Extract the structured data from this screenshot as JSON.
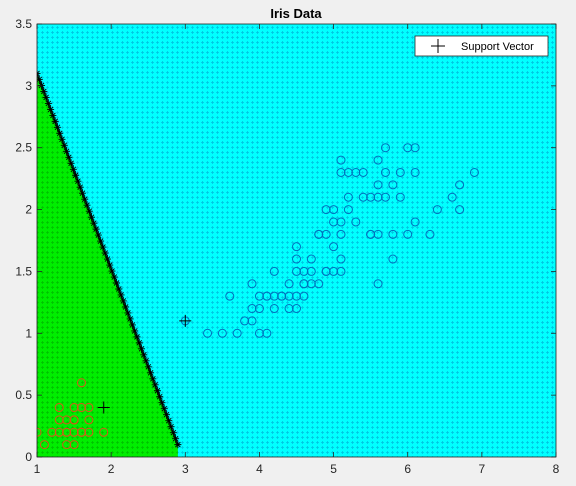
{
  "chart_data": {
    "type": "scatter",
    "title": "Iris Data",
    "xlabel": "",
    "ylabel": "",
    "xlim": [
      1,
      8
    ],
    "ylim": [
      0,
      3.5
    ],
    "xticks": [
      1,
      2,
      3,
      4,
      5,
      6,
      7,
      8
    ],
    "yticks": [
      0,
      0.5,
      1,
      1.5,
      2,
      2.5,
      3,
      3.5
    ],
    "grid": false,
    "legend": {
      "placement": "top-right",
      "entries": [
        "Support Vector"
      ]
    },
    "decision_regions": {
      "colors": {
        "class_a": "#00ee00",
        "class_b": "#00ffff"
      },
      "boundary": [
        [
          1.0,
          3.1
        ],
        [
          2.9,
          0.1
        ]
      ],
      "boundary_color": "#000000"
    },
    "series": [
      {
        "marker": "circle",
        "color": "#d9541a",
        "points": [
          [
            1.4,
            0.2
          ],
          [
            1.3,
            0.2
          ],
          [
            1.5,
            0.2
          ],
          [
            1.4,
            0.2
          ],
          [
            1.7,
            0.4
          ],
          [
            1.4,
            0.3
          ],
          [
            1.5,
            0.1
          ],
          [
            1.5,
            0.4
          ],
          [
            1.6,
            0.2
          ],
          [
            1.1,
            0.1
          ],
          [
            1.2,
            0.2
          ],
          [
            1.3,
            0.4
          ],
          [
            1.7,
            0.3
          ],
          [
            1.5,
            0.3
          ],
          [
            1.7,
            0.2
          ],
          [
            1.0,
            0.2
          ],
          [
            1.9,
            0.2
          ],
          [
            1.6,
            0.4
          ],
          [
            1.6,
            0.6
          ],
          [
            1.3,
            0.3
          ],
          [
            1.6,
            0.2
          ],
          [
            1.4,
            0.1
          ],
          [
            1.5,
            0.3
          ]
        ]
      },
      {
        "marker": "circle",
        "color": "#0072bd",
        "points": [
          [
            4.7,
            1.4
          ],
          [
            4.5,
            1.5
          ],
          [
            4.9,
            1.5
          ],
          [
            4.0,
            1.3
          ],
          [
            4.6,
            1.5
          ],
          [
            4.5,
            1.3
          ],
          [
            4.7,
            1.6
          ],
          [
            3.3,
            1.0
          ],
          [
            4.6,
            1.3
          ],
          [
            3.9,
            1.4
          ],
          [
            3.5,
            1.0
          ],
          [
            4.2,
            1.5
          ],
          [
            4.0,
            1.0
          ],
          [
            3.6,
            1.3
          ],
          [
            4.4,
            1.4
          ],
          [
            4.1,
            1.0
          ],
          [
            3.9,
            1.1
          ],
          [
            4.8,
            1.8
          ],
          [
            4.3,
            1.3
          ],
          [
            4.8,
            1.4
          ],
          [
            5.0,
            1.7
          ],
          [
            3.8,
            1.1
          ],
          [
            3.7,
            1.0
          ],
          [
            5.1,
            1.6
          ],
          [
            4.5,
            1.6
          ],
          [
            4.7,
            1.5
          ],
          [
            4.4,
            1.3
          ],
          [
            4.1,
            1.3
          ],
          [
            4.6,
            1.4
          ],
          [
            4.2,
            1.3
          ],
          [
            4.2,
            1.2
          ],
          [
            3.0,
            1.1
          ],
          [
            4.1,
            1.3
          ],
          [
            6.0,
            2.5
          ],
          [
            5.1,
            1.9
          ],
          [
            5.9,
            2.1
          ],
          [
            5.6,
            1.8
          ],
          [
            5.8,
            2.2
          ],
          [
            6.6,
            2.1
          ],
          [
            4.5,
            1.7
          ],
          [
            6.3,
            1.8
          ],
          [
            6.1,
            2.5
          ],
          [
            5.3,
            1.9
          ],
          [
            5.5,
            2.1
          ],
          [
            5.0,
            2.0
          ],
          [
            5.1,
            2.4
          ],
          [
            5.3,
            2.3
          ],
          [
            6.7,
            2.2
          ],
          [
            6.9,
            2.3
          ],
          [
            5.0,
            1.5
          ],
          [
            5.7,
            2.3
          ],
          [
            4.9,
            2.0
          ],
          [
            6.7,
            2.0
          ],
          [
            4.9,
            1.8
          ],
          [
            5.7,
            2.1
          ],
          [
            6.0,
            1.8
          ],
          [
            4.8,
            1.8
          ],
          [
            5.8,
            1.6
          ],
          [
            6.4,
            2.0
          ],
          [
            5.6,
            2.2
          ],
          [
            5.1,
            1.5
          ],
          [
            5.6,
            1.4
          ],
          [
            6.1,
            2.3
          ],
          [
            5.6,
            2.4
          ],
          [
            5.5,
            1.8
          ],
          [
            5.4,
            2.1
          ],
          [
            5.2,
            2.3
          ],
          [
            5.1,
            2.3
          ],
          [
            5.9,
            2.3
          ],
          [
            5.7,
            2.5
          ],
          [
            5.2,
            2.0
          ],
          [
            5.4,
            2.3
          ],
          [
            5.1,
            1.8
          ],
          [
            4.0,
            1.2
          ],
          [
            4.4,
            1.2
          ],
          [
            4.6,
            1.4
          ],
          [
            5.0,
            1.9
          ],
          [
            5.6,
            2.1
          ],
          [
            6.1,
            1.9
          ],
          [
            5.8,
            1.8
          ],
          [
            4.9,
            1.5
          ],
          [
            3.9,
            1.2
          ],
          [
            4.3,
            1.3
          ],
          [
            4.5,
            1.2
          ],
          [
            5.2,
            2.1
          ],
          [
            5.5,
            1.8
          ]
        ]
      },
      {
        "name": "Support Vector",
        "marker": "plus",
        "color": "#000000",
        "points": [
          [
            1.9,
            0.4
          ],
          [
            3.0,
            1.1
          ]
        ]
      }
    ]
  }
}
